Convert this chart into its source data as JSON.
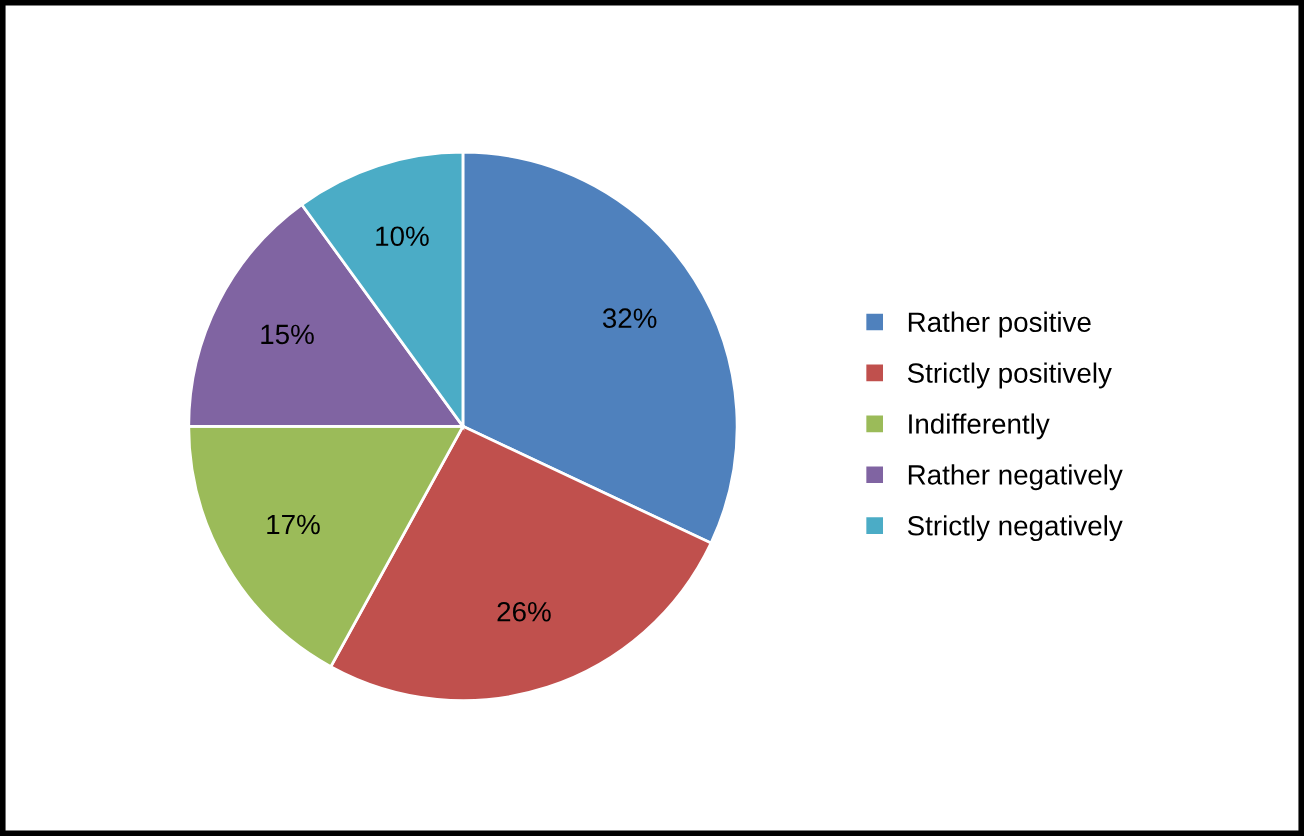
{
  "chart_data": {
    "type": "pie",
    "categories": [
      "Rather positive",
      "Strictly positively",
      "Indifferently",
      "Rather negatively",
      "Strictly negatively"
    ],
    "values": [
      32,
      26,
      17,
      15,
      10
    ],
    "value_labels": [
      "32%",
      "26%",
      "17%",
      "15%",
      "10%"
    ],
    "colors": [
      "#4f81bd",
      "#c0504d",
      "#9bbb59",
      "#8064a2",
      "#4bacc6"
    ],
    "legend": "right"
  }
}
